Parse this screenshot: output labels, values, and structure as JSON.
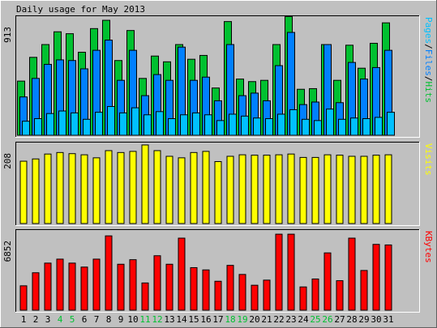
{
  "chart_data": {
    "type": "bar",
    "title": "Daily usage for May 2013",
    "categories": [
      "1",
      "2",
      "3",
      "4",
      "5",
      "6",
      "7",
      "8",
      "9",
      "10",
      "11",
      "12",
      "13",
      "14",
      "15",
      "16",
      "17",
      "18",
      "19",
      "20",
      "21",
      "22",
      "23",
      "24",
      "25",
      "26",
      "27",
      "28",
      "29",
      "30",
      "31"
    ],
    "weekend_days": [
      "4",
      "5",
      "11",
      "12",
      "18",
      "19",
      "25",
      "26"
    ],
    "colors": {
      "hits": "#00c030",
      "files": "#0080ff",
      "pages": "#00c0ff",
      "visits": "#ffff00",
      "kbytes": "#ff0000",
      "weekend": "#00c030",
      "weekday": "#000000",
      "axis_max": "#000000"
    },
    "panels": [
      {
        "id": "hits",
        "max_label": "913",
        "max": 913,
        "legend": [
          {
            "text": "Pages",
            "color": "#00c0ff"
          },
          {
            "text": "/",
            "color": "#000000"
          },
          {
            "text": "Files",
            "color": "#0080ff"
          },
          {
            "text": "/",
            "color": "#000000"
          },
          {
            "text": "Hits",
            "color": "#00c030"
          }
        ],
        "series": [
          {
            "name": "Hits",
            "color": "#00c030",
            "values": [
              424,
              610,
              710,
              810,
              795,
              650,
              835,
              900,
              585,
              820,
              445,
              620,
              575,
              710,
              595,
              625,
              370,
              890,
              440,
              420,
              430,
              710,
              930,
              360,
              365,
              710,
              430,
              705,
              525,
              720,
              880
            ]
          },
          {
            "name": "Files",
            "color": "#0080ff",
            "values": [
              300,
              445,
              555,
              590,
              585,
              520,
              665,
              745,
              430,
              665,
              310,
              475,
              430,
              690,
              430,
              455,
              270,
              710,
              310,
              330,
              270,
              545,
              805,
              240,
              260,
              710,
              255,
              570,
              440,
              530,
              665
            ]
          },
          {
            "name": "Pages",
            "color": "#00c0ff",
            "values": [
              110,
              130,
              170,
              190,
              175,
              125,
              180,
              225,
              175,
              215,
              160,
              185,
              130,
              160,
              175,
              160,
              115,
              165,
              150,
              135,
              130,
              165,
              200,
              125,
              115,
              205,
              125,
              135,
              130,
              140,
              180
            ]
          }
        ]
      },
      {
        "id": "visits",
        "max_label": "208",
        "max": 208,
        "legend": [
          {
            "text": "Visits",
            "color": "#ffff00"
          }
        ],
        "series": [
          {
            "name": "Visits",
            "color": "#ffff00",
            "values": [
              165,
              171,
              184,
              188,
              185,
              182,
              174,
              193,
              188,
              191,
              208,
              193,
              178,
              174,
              188,
              191,
              164,
              178,
              182,
              181,
              181,
              182,
              184,
              175,
              175,
              182,
              181,
              178,
              178,
              181,
              182
            ]
          }
        ]
      },
      {
        "id": "kbytes",
        "max_label": "6852",
        "max": 6852,
        "legend": [
          {
            "text": "KBytes",
            "color": "#ff0000"
          }
        ],
        "series": [
          {
            "name": "KBytes",
            "color": "#ff0000",
            "values": [
              2150,
              3300,
              4150,
              4500,
              4150,
              3800,
              4500,
              6550,
              4050,
              4450,
              2400,
              4800,
              4050,
              6350,
              3750,
              3550,
              2550,
              3950,
              3150,
              2200,
              2650,
              6700,
              6700,
              2050,
              2750,
              5050,
              2600,
              6350,
              3500,
              5800,
              5750
            ]
          }
        ]
      }
    ]
  }
}
